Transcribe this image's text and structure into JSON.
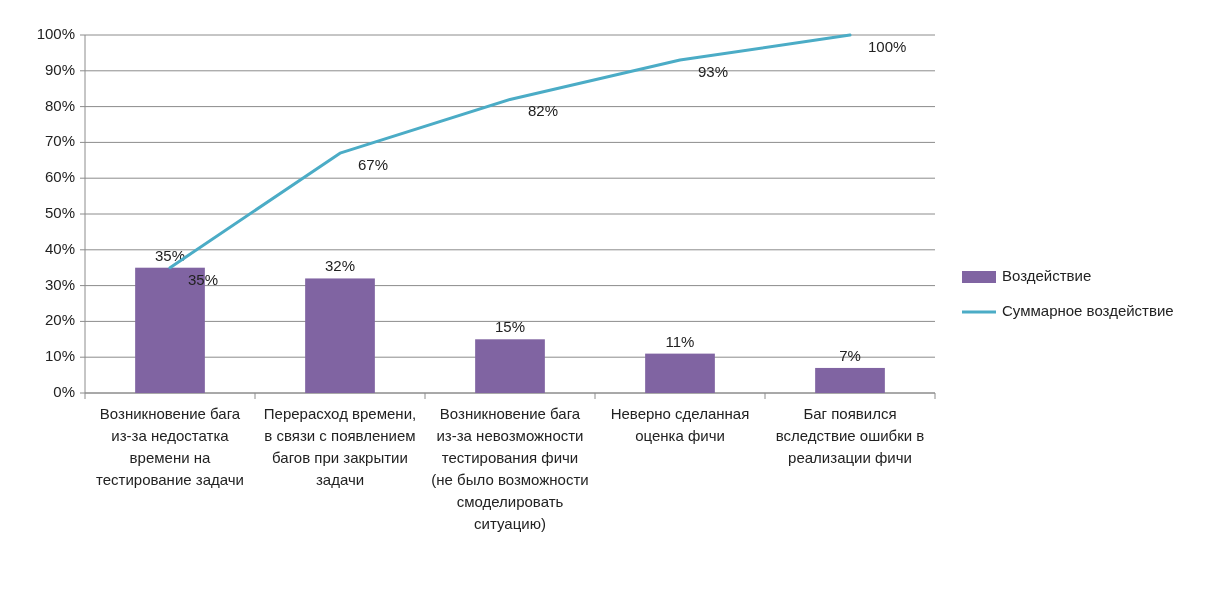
{
  "chart_data": {
    "type": "bar",
    "categories": [
      "Возникновение бага из-за недостатка времени на тестирование задачи",
      "Перерасход времени, в связи с появлением багов при закрытии задачи",
      "Возникновение бага из-за невозможности тестирования фичи (не было возможности смоделировать ситуацию)",
      "Неверно сделанная оценка фичи",
      "Баг появился вследствие ошибки в реализации фичи"
    ],
    "series": [
      {
        "name": "Воздействие",
        "color": "#8064a2",
        "values": [
          35,
          32,
          15,
          11,
          7
        ],
        "value_labels": [
          "35%",
          "32%",
          "15%",
          "11%",
          "7%"
        ]
      },
      {
        "name": "Суммарное воздействие",
        "type": "line",
        "color": "#4bacc6",
        "values": [
          35,
          67,
          82,
          93,
          100
        ],
        "value_labels": [
          "35%",
          "67%",
          "82%",
          "93%",
          "100%"
        ]
      }
    ],
    "ylim": [
      0,
      100
    ],
    "yticks": [
      {
        "value": 0,
        "label": "0%"
      },
      {
        "value": 10,
        "label": "10%"
      },
      {
        "value": 20,
        "label": "20%"
      },
      {
        "value": 30,
        "label": "30%"
      },
      {
        "value": 40,
        "label": "40%"
      },
      {
        "value": 50,
        "label": "50%"
      },
      {
        "value": 60,
        "label": "60%"
      },
      {
        "value": 70,
        "label": "70%"
      },
      {
        "value": 80,
        "label": "80%"
      },
      {
        "value": 90,
        "label": "90%"
      },
      {
        "value": 100,
        "label": "100%"
      }
    ],
    "grid": "y",
    "legend": "right",
    "marker": "none",
    "line_style": "solid"
  }
}
